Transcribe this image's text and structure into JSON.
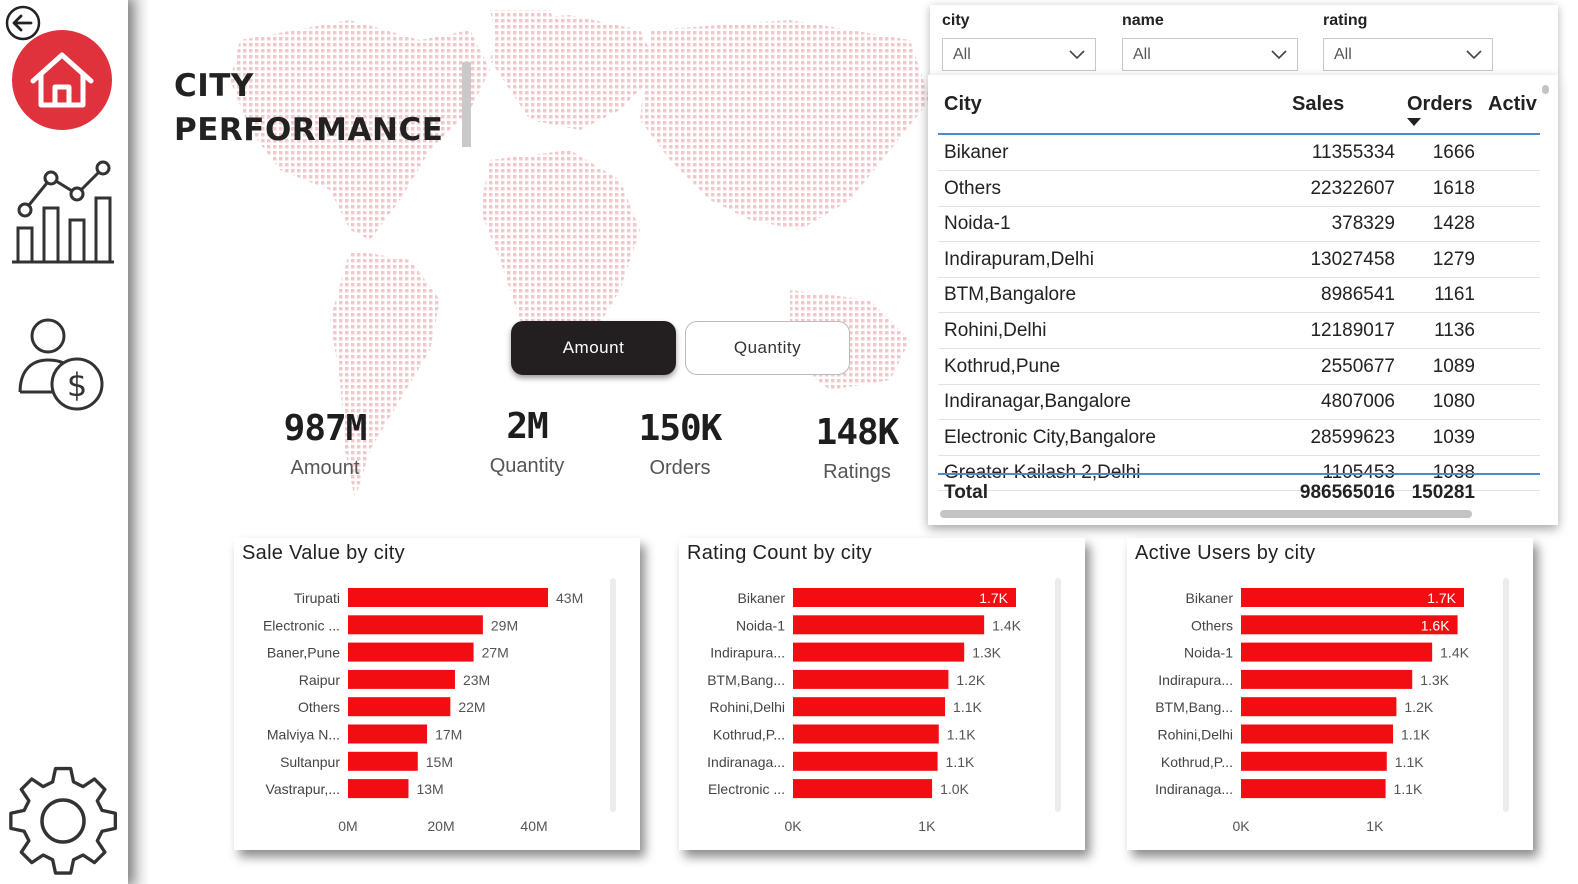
{
  "page": {
    "title_line1": "CITY",
    "title_line2": "PERFORMANCE"
  },
  "sidebar": {
    "items": [
      {
        "icon": "back-arrow-icon"
      },
      {
        "icon": "home-icon",
        "active": true
      },
      {
        "icon": "analytics-chart-icon"
      },
      {
        "icon": "user-dollar-icon"
      },
      {
        "icon": "gear-icon"
      }
    ],
    "accent_color": "#e0323d"
  },
  "toggles": {
    "amount_label": "Amount",
    "quantity_label": "Quantity",
    "selected": "Amount"
  },
  "kpis": [
    {
      "value": "987M",
      "label": "Amount"
    },
    {
      "value": "2M",
      "label": "Quantity"
    },
    {
      "value": "150K",
      "label": "Orders"
    },
    {
      "value": "148K",
      "label": "Ratings"
    }
  ],
  "filters": [
    {
      "label": "city",
      "value": "All"
    },
    {
      "label": "name",
      "value": "All"
    },
    {
      "label": "rating",
      "value": "All"
    }
  ],
  "table": {
    "columns": [
      "City",
      "Sales",
      "Orders",
      "Activ"
    ],
    "sort_column": "Orders",
    "rows": [
      {
        "city": "Bikaner",
        "sales": "11355334",
        "orders": "1666"
      },
      {
        "city": "Others",
        "sales": "22322607",
        "orders": "1618"
      },
      {
        "city": "Noida-1",
        "sales": "378329",
        "orders": "1428"
      },
      {
        "city": "Indirapuram,Delhi",
        "sales": "13027458",
        "orders": "1279"
      },
      {
        "city": "BTM,Bangalore",
        "sales": "8986541",
        "orders": "1161"
      },
      {
        "city": "Rohini,Delhi",
        "sales": "12189017",
        "orders": "1136"
      },
      {
        "city": "Kothrud,Pune",
        "sales": "2550677",
        "orders": "1089"
      },
      {
        "city": "Indiranagar,Bangalore",
        "sales": "4807006",
        "orders": "1080"
      },
      {
        "city": "Electronic City,Bangalore",
        "sales": "28599623",
        "orders": "1039"
      },
      {
        "city": "Greater Kailash 2,Delhi",
        "sales": "1105453",
        "orders": "1038"
      }
    ],
    "total": {
      "label": "Total",
      "sales": "986565016",
      "orders": "150281"
    }
  },
  "chart_data": [
    {
      "type": "bar",
      "orientation": "horizontal",
      "title": "Sale Value by city",
      "categories": [
        "Tirupati",
        "Electronic ...",
        "Baner,Pune",
        "Raipur",
        "Others",
        "Malviya N...",
        "Sultanpur",
        "Vastrapur,..."
      ],
      "values": [
        43000000,
        29000000,
        27000000,
        23000000,
        22000000,
        17000000,
        15000000,
        13000000
      ],
      "data_labels": [
        "43M",
        "29M",
        "27M",
        "23M",
        "22M",
        "17M",
        "15M",
        "13M"
      ],
      "xticks": [
        "0M",
        "20M",
        "40M"
      ],
      "xtick_values": [
        0,
        20000000,
        40000000
      ],
      "xlim": [
        0,
        43000000
      ],
      "bar_color": "#f20d12",
      "grid": false
    },
    {
      "type": "bar",
      "orientation": "horizontal",
      "title": "Rating Count by city",
      "categories": [
        "Bikaner",
        "Noida-1",
        "Indirapura...",
        "BTM,Bang...",
        "Rohini,Delhi",
        "Kothrud,P...",
        "Indiranaga...",
        "Electronic ..."
      ],
      "values": [
        1666,
        1428,
        1279,
        1161,
        1136,
        1089,
        1080,
        1039
      ],
      "data_labels": [
        "1.7K",
        "1.4K",
        "1.3K",
        "1.2K",
        "1.1K",
        "1.1K",
        "1.1K",
        "1.0K"
      ],
      "xticks": [
        "0K",
        "1K"
      ],
      "xtick_values": [
        0,
        1000
      ],
      "xlim": [
        0,
        1666
      ],
      "bar_color": "#f20d12",
      "grid": false
    },
    {
      "type": "bar",
      "orientation": "horizontal",
      "title": "Active Users by city",
      "categories": [
        "Bikaner",
        "Others",
        "Noida-1",
        "Indirapura...",
        "BTM,Bang...",
        "Rohini,Delhi",
        "Kothrud,P...",
        "Indiranaga..."
      ],
      "values": [
        1666,
        1618,
        1428,
        1279,
        1161,
        1136,
        1089,
        1080
      ],
      "data_labels": [
        "1.7K",
        "1.6K",
        "1.4K",
        "1.3K",
        "1.2K",
        "1.1K",
        "1.1K",
        "1.1K"
      ],
      "xticks": [
        "0K",
        "1K"
      ],
      "xtick_values": [
        0,
        1000
      ],
      "xlim": [
        0,
        1666
      ],
      "bar_color": "#f20d12",
      "grid": false
    }
  ]
}
